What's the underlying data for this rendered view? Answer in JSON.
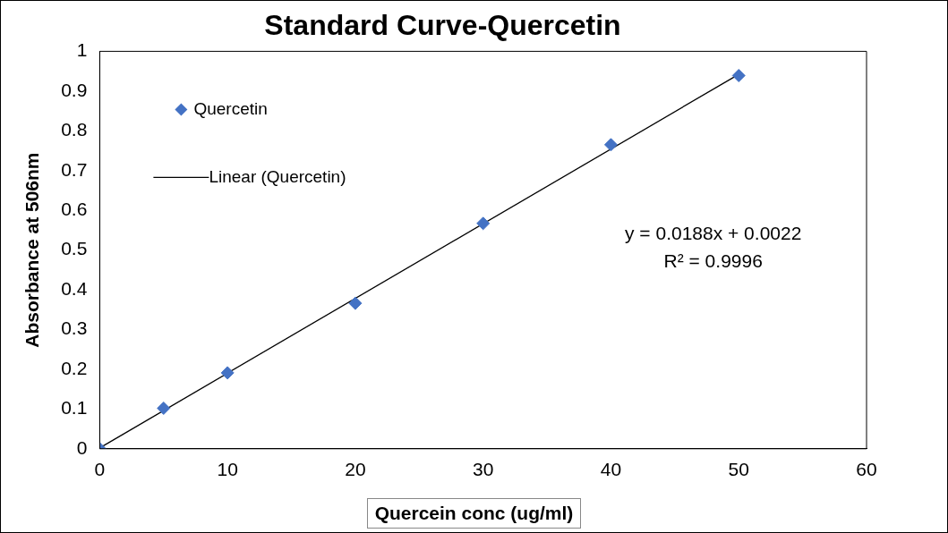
{
  "chart_data": {
    "type": "scatter",
    "title": "Standard Curve-Quercetin",
    "xlabel": "Quercein conc (ug/ml)",
    "ylabel": "Absorbance at 506nm",
    "x": [
      0,
      5,
      10,
      20,
      30,
      40,
      50
    ],
    "series": [
      {
        "name": "Quercetin",
        "color": "#4472c4",
        "values": [
          0,
          0.102,
          0.191,
          0.366,
          0.567,
          0.765,
          0.939
        ],
        "marker": "diamond"
      },
      {
        "name": "Linear (Quercetin)",
        "type": "line",
        "color": "#000000",
        "x": [
          0,
          50
        ],
        "values": [
          0.0022,
          0.9422
        ],
        "marker": "none"
      }
    ],
    "xlim": [
      0,
      60
    ],
    "xticks": [
      0,
      10,
      20,
      30,
      40,
      50,
      60
    ],
    "ylim": [
      0,
      1
    ],
    "yticks": [
      0,
      0.1,
      0.2,
      0.3,
      0.4,
      0.5,
      0.6,
      0.7,
      0.8,
      0.9,
      1
    ],
    "grid": false,
    "legend": "top left",
    "annotations": [
      "y = 0.0188x + 0.0022",
      "R² = 0.9996"
    ]
  }
}
